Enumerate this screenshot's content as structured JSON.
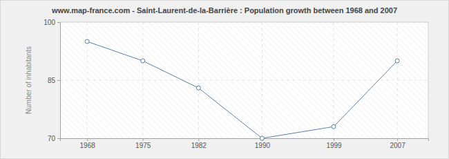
{
  "chart_data": {
    "type": "line",
    "title": "www.map-france.com - Saint-Laurent-de-la-Barrière : Population growth between 1968 and 2007",
    "y_label": "Number of inhabitants",
    "x": [
      1968,
      1975,
      1982,
      1990,
      1999,
      2007
    ],
    "values": [
      95,
      90,
      83,
      70,
      73,
      90
    ],
    "xlim": [
      1964.6,
      2010.9
    ],
    "xticks": [
      1968,
      1975,
      1982,
      1990,
      1999,
      2007
    ],
    "ylim": [
      70,
      100
    ],
    "yticks": [
      70,
      85,
      100
    ],
    "grid": true,
    "color": "#5b80a8",
    "marker": "circle"
  }
}
